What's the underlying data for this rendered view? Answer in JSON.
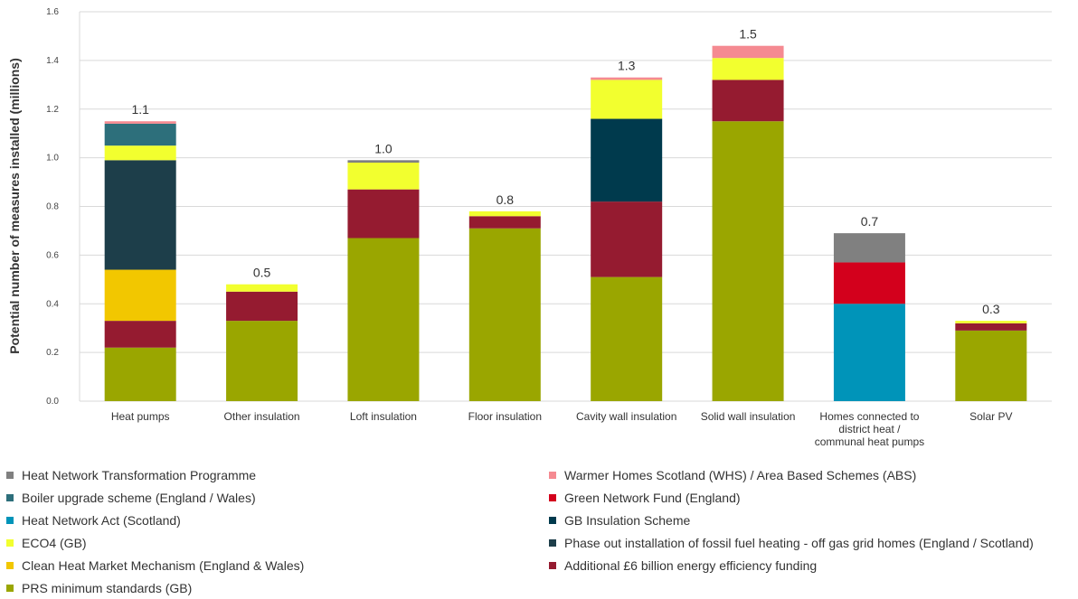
{
  "chart_data": {
    "type": "bar",
    "stacked": true,
    "ylabel": "Potential number of measures installed (millions)",
    "ylim": [
      0,
      1.6
    ],
    "yticks": [
      "0.0",
      "0.2",
      "0.4",
      "0.6",
      "0.8",
      "1.0",
      "1.2",
      "1.4",
      "1.6"
    ],
    "grid": true,
    "legend_position": "bottom",
    "categories": [
      [
        "Heat pumps"
      ],
      [
        "Other insulation"
      ],
      [
        "Loft insulation"
      ],
      [
        "Floor insulation"
      ],
      [
        "Cavity wall insulation"
      ],
      [
        "Solid wall insulation"
      ],
      [
        "Homes connected to",
        "district heat /",
        "communal heat pumps"
      ],
      [
        "Solar PV"
      ]
    ],
    "totals": [
      "1.1",
      "0.5",
      "1.0",
      "0.8",
      "1.3",
      "1.5",
      "0.7",
      "0.3"
    ],
    "series": [
      {
        "name": "PRS minimum standards (GB)",
        "color": "#9aa600",
        "values": [
          0.22,
          0.33,
          0.67,
          0.71,
          0.51,
          1.15,
          0,
          0.29
        ]
      },
      {
        "name": "Additional £6 billion energy efficiency funding",
        "color": "#951b30",
        "values": [
          0.11,
          0.12,
          0.2,
          0.05,
          0.31,
          0.17,
          0,
          0.03
        ]
      },
      {
        "name": "Clean Heat Market Mechanism (England & Wales)",
        "color": "#f2c700",
        "values": [
          0.21,
          0,
          0,
          0,
          0,
          0,
          0,
          0
        ]
      },
      {
        "name": "Phase out installation of fossil fuel heating - off gas grid homes (England / Scotland)",
        "color": "#1d3e4a",
        "values": [
          0.45,
          0,
          0,
          0,
          0,
          0,
          0,
          0
        ]
      },
      {
        "name": "GB Insulation Scheme",
        "color": "#003a4d",
        "values": [
          0,
          0,
          0,
          0,
          0.34,
          0,
          0,
          0
        ]
      },
      {
        "name": "ECO4 (GB)",
        "color": "#f2ff2f",
        "values": [
          0.06,
          0.03,
          0.11,
          0.02,
          0.16,
          0.09,
          0,
          0.01
        ]
      },
      {
        "name": "Heat Network Act (Scotland)",
        "color": "#0094b9",
        "values": [
          0,
          0,
          0,
          0,
          0,
          0,
          0.4,
          0
        ]
      },
      {
        "name": "Green Network Fund (England)",
        "color": "#d3001c",
        "values": [
          0,
          0,
          0,
          0,
          0,
          0,
          0.17,
          0
        ]
      },
      {
        "name": "Boiler upgrade scheme (England / Wales)",
        "color": "#2d6f7b",
        "values": [
          0.09,
          0,
          0,
          0,
          0,
          0,
          0,
          0
        ]
      },
      {
        "name": "Heat Network Transformation Programme",
        "color": "#808080",
        "values": [
          0,
          0,
          0.01,
          0,
          0,
          0,
          0.12,
          0
        ]
      },
      {
        "name": "Warmer Homes Scotland (WHS) / Area Based Schemes (ABS)",
        "color": "#f58a91",
        "values": [
          0.01,
          0,
          0,
          0,
          0.01,
          0.05,
          0,
          0
        ]
      }
    ],
    "legend_order": [
      [
        "Heat Network Transformation Programme",
        "Warmer Homes Scotland (WHS) / Area Based Schemes (ABS)"
      ],
      [
        "Boiler upgrade scheme (England / Wales)",
        "Green Network Fund (England)"
      ],
      [
        "Heat Network Act (Scotland)",
        "GB Insulation Scheme"
      ],
      [
        "ECO4 (GB)",
        "Phase out installation of fossil fuel heating - off gas grid homes (England / Scotland)"
      ],
      [
        "Clean Heat Market Mechanism (England & Wales)",
        "Additional £6 billion energy efficiency funding"
      ],
      [
        "PRS minimum standards (GB)",
        ""
      ]
    ]
  }
}
